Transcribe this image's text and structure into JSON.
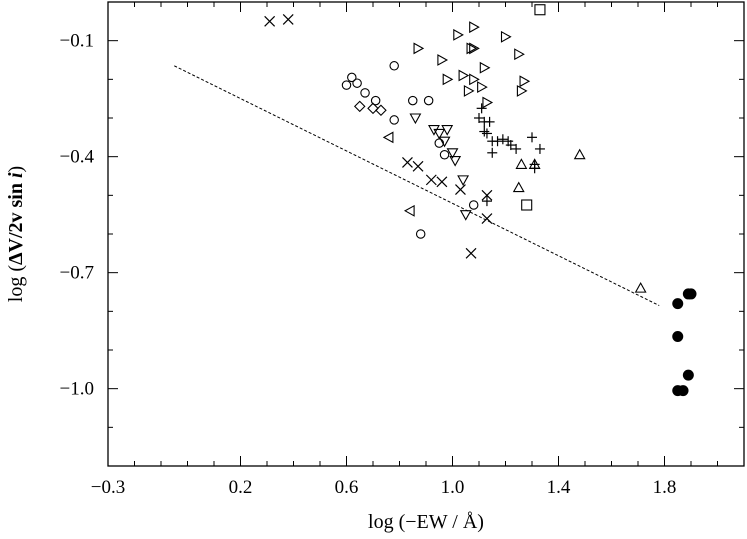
{
  "chart_data": {
    "type": "scatter",
    "title": "",
    "xlabel": "log (−EW / Å)",
    "ylabel_parts": [
      "log (",
      "ΔV/2v sin ",
      "i",
      ")"
    ],
    "xlim": [
      -0.3,
      2.1
    ],
    "ylim": [
      -1.2,
      0.0
    ],
    "x_ticks": [
      -0.3,
      0.2,
      0.6,
      1.0,
      1.4,
      1.8
    ],
    "x_tick_labels": [
      "−0.3",
      "0.2",
      "0.6",
      "1.0",
      "1.4",
      "1.8"
    ],
    "y_ticks": [
      -0.1,
      -0.4,
      -0.7,
      -1.0
    ],
    "y_tick_labels": [
      "−0.1",
      "−0.4",
      "−0.7",
      "−1.0"
    ],
    "grid": false,
    "fit_line": {
      "style": "dashed",
      "x": [
        -0.05,
        1.78
      ],
      "y": [
        -0.165,
        -0.785
      ]
    },
    "series": [
      {
        "name": "crosses",
        "marker": "x",
        "points": [
          [
            0.31,
            -0.05
          ],
          [
            0.38,
            -0.045
          ],
          [
            0.83,
            -0.415
          ],
          [
            0.87,
            -0.425
          ],
          [
            0.92,
            -0.46
          ],
          [
            0.96,
            -0.465
          ],
          [
            1.03,
            -0.485
          ],
          [
            1.13,
            -0.5
          ],
          [
            1.13,
            -0.56
          ],
          [
            1.07,
            -0.65
          ]
        ]
      },
      {
        "name": "circles",
        "marker": "circle",
        "points": [
          [
            0.6,
            -0.215
          ],
          [
            0.62,
            -0.195
          ],
          [
            0.64,
            -0.21
          ],
          [
            0.67,
            -0.235
          ],
          [
            0.71,
            -0.255
          ],
          [
            0.78,
            -0.165
          ],
          [
            0.78,
            -0.305
          ],
          [
            0.85,
            -0.255
          ],
          [
            0.91,
            -0.255
          ],
          [
            0.95,
            -0.365
          ],
          [
            0.97,
            -0.395
          ],
          [
            1.08,
            -0.525
          ],
          [
            0.88,
            -0.6
          ]
        ]
      },
      {
        "name": "diamonds",
        "marker": "diamond",
        "points": [
          [
            0.65,
            -0.27
          ],
          [
            0.7,
            -0.275
          ],
          [
            0.73,
            -0.28
          ]
        ]
      },
      {
        "name": "right-triangles",
        "marker": "triangle-right",
        "points": [
          [
            0.87,
            -0.12
          ],
          [
            0.96,
            -0.15
          ],
          [
            0.98,
            -0.2
          ],
          [
            1.02,
            -0.085
          ],
          [
            1.04,
            -0.19
          ],
          [
            1.06,
            -0.23
          ],
          [
            1.07,
            -0.12
          ],
          [
            1.08,
            -0.12
          ],
          [
            1.08,
            -0.065
          ],
          [
            1.08,
            -0.2
          ],
          [
            1.11,
            -0.22
          ],
          [
            1.12,
            -0.17
          ],
          [
            1.13,
            -0.26
          ],
          [
            1.2,
            -0.09
          ],
          [
            1.25,
            -0.135
          ],
          [
            1.26,
            -0.23
          ],
          [
            1.27,
            -0.205
          ]
        ]
      },
      {
        "name": "down-triangles",
        "marker": "triangle-down",
        "points": [
          [
            0.86,
            -0.3
          ],
          [
            0.93,
            -0.33
          ],
          [
            0.95,
            -0.34
          ],
          [
            0.97,
            -0.36
          ],
          [
            0.98,
            -0.33
          ],
          [
            1.0,
            -0.39
          ],
          [
            1.01,
            -0.41
          ],
          [
            1.04,
            -0.46
          ],
          [
            1.05,
            -0.55
          ]
        ]
      },
      {
        "name": "left-triangles",
        "marker": "triangle-left",
        "points": [
          [
            0.76,
            -0.35
          ],
          [
            0.84,
            -0.54
          ]
        ]
      },
      {
        "name": "plus-signs",
        "marker": "plus",
        "points": [
          [
            1.1,
            -0.3
          ],
          [
            1.11,
            -0.275
          ],
          [
            1.12,
            -0.31
          ],
          [
            1.12,
            -0.335
          ],
          [
            1.13,
            -0.34
          ],
          [
            1.14,
            -0.31
          ],
          [
            1.15,
            -0.36
          ],
          [
            1.15,
            -0.39
          ],
          [
            1.17,
            -0.36
          ],
          [
            1.19,
            -0.355
          ],
          [
            1.21,
            -0.36
          ],
          [
            1.22,
            -0.37
          ],
          [
            1.24,
            -0.38
          ],
          [
            1.3,
            -0.35
          ],
          [
            1.31,
            -0.42
          ],
          [
            1.31,
            -0.43
          ],
          [
            1.33,
            -0.38
          ],
          [
            1.13,
            -0.515
          ]
        ]
      },
      {
        "name": "up-triangles",
        "marker": "triangle-up",
        "points": [
          [
            1.25,
            -0.48
          ],
          [
            1.26,
            -0.42
          ],
          [
            1.31,
            -0.42
          ],
          [
            1.48,
            -0.395
          ],
          [
            1.71,
            -0.74
          ]
        ]
      },
      {
        "name": "squares",
        "marker": "square",
        "points": [
          [
            1.33,
            -0.02
          ],
          [
            1.28,
            -0.525
          ]
        ]
      },
      {
        "name": "filled-circles",
        "marker": "filled-circle",
        "points": [
          [
            1.85,
            -0.78
          ],
          [
            1.85,
            -0.865
          ],
          [
            1.89,
            -0.755
          ],
          [
            1.9,
            -0.755
          ],
          [
            1.89,
            -0.965
          ],
          [
            1.85,
            -1.005
          ],
          [
            1.87,
            -1.005
          ]
        ]
      }
    ]
  }
}
